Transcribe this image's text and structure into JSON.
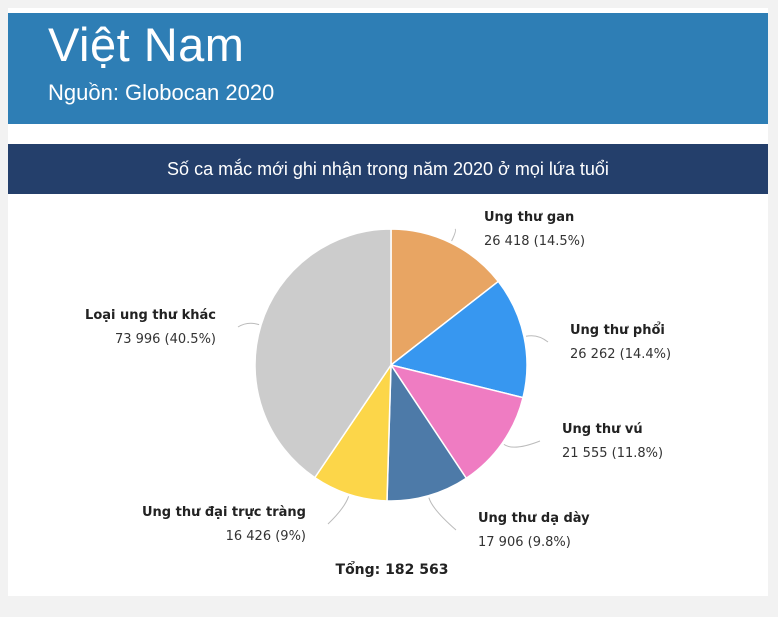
{
  "header": {
    "title": "Việt Nam",
    "subtitle": "Nguồn: Globocan 2020"
  },
  "banner": {
    "text": "Số ca mắc mới ghi nhận trong năm 2020 ở mọi lứa tuổi"
  },
  "chart_data": {
    "type": "pie",
    "total_label": "Tổng: 182 563",
    "slices": [
      {
        "name": "Ung thư gan",
        "value": 26418,
        "value_label": "26 418 (14.5%)",
        "percent": 14.5,
        "color": "#e8a563"
      },
      {
        "name": "Ung thư phổi",
        "value": 26262,
        "value_label": "26 262 (14.4%)",
        "percent": 14.4,
        "color": "#3797f0"
      },
      {
        "name": "Ung thư vú",
        "value": 21555,
        "value_label": "21 555 (11.8%)",
        "percent": 11.8,
        "color": "#ef7cc2"
      },
      {
        "name": "Ung thư dạ dày",
        "value": 17906,
        "value_label": "17 906 (9.8%)",
        "percent": 9.8,
        "color": "#4d7aa8"
      },
      {
        "name": "Ung thư đại trực tràng",
        "value": 16426,
        "value_label": "16 426 (9%)",
        "percent": 9.0,
        "color": "#fcd649"
      },
      {
        "name": "Loại ung thư khác",
        "value": 73996,
        "value_label": "73 996 (40.5%)",
        "percent": 40.5,
        "color": "#cccccc"
      }
    ]
  }
}
